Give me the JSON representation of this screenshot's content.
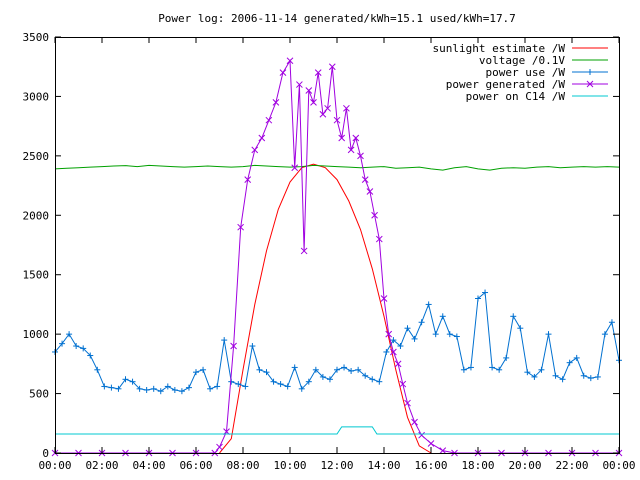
{
  "chart_data": {
    "type": "line",
    "title": "Power log: 2006-11-14 generated/kWh=15.1 used/kWh=17.7",
    "xlabel": "",
    "ylabel": "",
    "x_unit": "hours",
    "xlim": [
      0,
      24
    ],
    "ylim": [
      0,
      3500
    ],
    "grid": false,
    "legend_position": "top-right",
    "x_ticks": [
      {
        "value": 0,
        "label": "00:00"
      },
      {
        "value": 2,
        "label": "02:00"
      },
      {
        "value": 4,
        "label": "04:00"
      },
      {
        "value": 6,
        "label": "06:00"
      },
      {
        "value": 8,
        "label": "08:00"
      },
      {
        "value": 10,
        "label": "10:00"
      },
      {
        "value": 12,
        "label": "12:00"
      },
      {
        "value": 14,
        "label": "14:00"
      },
      {
        "value": 16,
        "label": "16:00"
      },
      {
        "value": 18,
        "label": "18:00"
      },
      {
        "value": 20,
        "label": "20:00"
      },
      {
        "value": 22,
        "label": "22:00"
      },
      {
        "value": 24,
        "label": "00:00"
      }
    ],
    "y_ticks": [
      {
        "value": 0,
        "label": "0"
      },
      {
        "value": 500,
        "label": "500"
      },
      {
        "value": 1000,
        "label": "1000"
      },
      {
        "value": 1500,
        "label": "1500"
      },
      {
        "value": 2000,
        "label": "2000"
      },
      {
        "value": 2500,
        "label": "2500"
      },
      {
        "value": 3000,
        "label": "3000"
      },
      {
        "value": 3500,
        "label": "3500"
      }
    ],
    "series": [
      {
        "name": "sunlight estimate /W",
        "color": "#ff0000",
        "style": "line",
        "x": [
          7.0,
          7.5,
          8.0,
          8.5,
          9.0,
          9.5,
          10.0,
          10.5,
          11.0,
          11.5,
          12.0,
          12.5,
          13.0,
          13.5,
          14.0,
          14.5,
          15.0,
          15.5,
          16.0
        ],
        "y": [
          0,
          120,
          700,
          1250,
          1700,
          2050,
          2280,
          2400,
          2430,
          2400,
          2300,
          2120,
          1880,
          1550,
          1150,
          700,
          300,
          60,
          0
        ]
      },
      {
        "name": "voltage /0.1V",
        "color": "#00a000",
        "style": "line",
        "x": [
          0.0,
          0.5,
          1.0,
          1.5,
          2.0,
          2.5,
          3.0,
          3.5,
          4.0,
          4.5,
          5.0,
          5.5,
          6.0,
          6.5,
          7.0,
          7.5,
          8.0,
          8.5,
          9.0,
          9.5,
          10.0,
          10.5,
          11.0,
          11.5,
          12.0,
          12.5,
          13.0,
          13.5,
          14.0,
          14.5,
          15.0,
          15.5,
          16.0,
          16.5,
          17.0,
          17.5,
          18.0,
          18.5,
          19.0,
          19.5,
          20.0,
          20.5,
          21.0,
          21.5,
          22.0,
          22.5,
          23.0,
          23.5,
          24.0
        ],
        "y": [
          2390,
          2395,
          2400,
          2405,
          2410,
          2415,
          2418,
          2410,
          2420,
          2415,
          2410,
          2405,
          2410,
          2415,
          2410,
          2405,
          2410,
          2420,
          2415,
          2410,
          2405,
          2410,
          2420,
          2415,
          2410,
          2405,
          2400,
          2405,
          2410,
          2395,
          2400,
          2405,
          2390,
          2380,
          2400,
          2410,
          2390,
          2380,
          2395,
          2400,
          2395,
          2405,
          2410,
          2400,
          2405,
          2410,
          2405,
          2410,
          2405
        ]
      },
      {
        "name": "power use /W",
        "color": "#0070d0",
        "style": "linespoints",
        "marker": "plus",
        "x": [
          0.0,
          0.3,
          0.6,
          0.9,
          1.2,
          1.5,
          1.8,
          2.1,
          2.4,
          2.7,
          3.0,
          3.3,
          3.6,
          3.9,
          4.2,
          4.5,
          4.8,
          5.1,
          5.4,
          5.7,
          6.0,
          6.3,
          6.6,
          6.9,
          7.2,
          7.5,
          7.8,
          8.1,
          8.4,
          8.7,
          9.0,
          9.3,
          9.6,
          9.9,
          10.2,
          10.5,
          10.8,
          11.1,
          11.4,
          11.7,
          12.0,
          12.3,
          12.6,
          12.9,
          13.2,
          13.5,
          13.8,
          14.1,
          14.4,
          14.7,
          15.0,
          15.3,
          15.6,
          15.9,
          16.2,
          16.5,
          16.8,
          17.1,
          17.4,
          17.7,
          18.0,
          18.3,
          18.6,
          18.9,
          19.2,
          19.5,
          19.8,
          20.1,
          20.4,
          20.7,
          21.0,
          21.3,
          21.6,
          21.9,
          22.2,
          22.5,
          22.8,
          23.1,
          23.4,
          23.7,
          24.0
        ],
        "y": [
          850,
          920,
          1000,
          900,
          880,
          820,
          700,
          560,
          550,
          540,
          620,
          600,
          540,
          530,
          540,
          520,
          560,
          530,
          520,
          550,
          680,
          700,
          540,
          560,
          950,
          600,
          580,
          560,
          900,
          700,
          680,
          600,
          580,
          560,
          720,
          540,
          600,
          700,
          640,
          620,
          700,
          720,
          690,
          700,
          650,
          620,
          600,
          850,
          950,
          900,
          1050,
          960,
          1100,
          1250,
          1000,
          1150,
          1000,
          980,
          700,
          720,
          1300,
          1350,
          720,
          700,
          800,
          1150,
          1050,
          680,
          640,
          700,
          1000,
          650,
          620,
          760,
          800,
          650,
          630,
          640,
          1000,
          1100,
          780
        ]
      },
      {
        "name": "power generated /W",
        "color": "#a000e0",
        "style": "linespoints",
        "marker": "cross",
        "x": [
          0.0,
          1.0,
          2.0,
          3.0,
          4.0,
          5.0,
          6.0,
          6.8,
          7.0,
          7.3,
          7.6,
          7.9,
          8.2,
          8.5,
          8.8,
          9.1,
          9.4,
          9.7,
          10.0,
          10.2,
          10.4,
          10.6,
          10.8,
          11.0,
          11.2,
          11.4,
          11.6,
          11.8,
          12.0,
          12.2,
          12.4,
          12.6,
          12.8,
          13.0,
          13.2,
          13.4,
          13.6,
          13.8,
          14.0,
          14.2,
          14.4,
          14.6,
          14.8,
          15.0,
          15.3,
          15.6,
          16.0,
          16.5,
          17.0,
          18.0,
          19.0,
          20.0,
          21.0,
          22.0,
          23.0,
          24.0
        ],
        "y": [
          0,
          0,
          0,
          0,
          0,
          0,
          0,
          0,
          50,
          180,
          900,
          1900,
          2300,
          2550,
          2650,
          2800,
          2950,
          3200,
          3300,
          2400,
          3100,
          1700,
          3050,
          2950,
          3200,
          2850,
          2900,
          3250,
          2800,
          2650,
          2900,
          2550,
          2650,
          2500,
          2300,
          2200,
          2000,
          1800,
          1300,
          1000,
          850,
          750,
          580,
          420,
          260,
          150,
          80,
          20,
          0,
          0,
          0,
          0,
          0,
          0,
          0,
          0
        ]
      },
      {
        "name": "power on C14 /W",
        "color": "#00c8d0",
        "style": "line",
        "x": [
          0.0,
          2.0,
          4.0,
          6.0,
          8.0,
          10.0,
          12.0,
          12.2,
          12.4,
          13.0,
          13.5,
          13.7,
          14.0,
          16.0,
          18.0,
          20.0,
          22.0,
          24.0
        ],
        "y": [
          160,
          160,
          160,
          160,
          160,
          160,
          160,
          220,
          220,
          220,
          220,
          160,
          160,
          160,
          160,
          160,
          160,
          160
        ]
      }
    ]
  }
}
